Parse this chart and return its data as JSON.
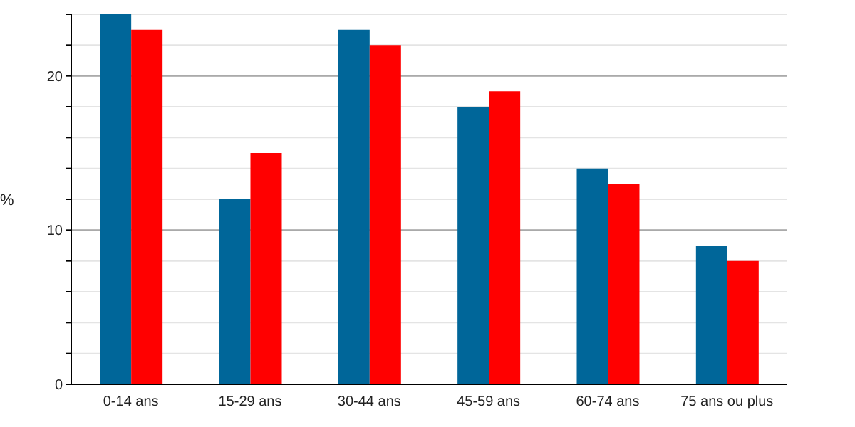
{
  "chart_data": {
    "type": "bar",
    "ylabel": "%",
    "categories": [
      "0-14 ans",
      "15-29 ans",
      "30-44 ans",
      "45-59 ans",
      "60-74 ans",
      "75 ans ou plus"
    ],
    "series": [
      {
        "color": "#006699",
        "values": [
          24,
          12,
          23,
          18,
          14,
          9
        ]
      },
      {
        "color": "#ff0000",
        "values": [
          23,
          15,
          22,
          19,
          13,
          8
        ]
      }
    ],
    "ylim": [
      0,
      24
    ],
    "yticks": [
      0,
      {
        "value": 2,
        "label": null
      },
      {
        "value": 4,
        "label": null
      },
      {
        "value": 6,
        "label": null
      },
      {
        "value": 8,
        "label": null
      },
      10,
      {
        "value": 12,
        "label": null
      },
      {
        "value": 14,
        "label": null
      },
      {
        "value": 16,
        "label": null
      },
      {
        "value": 18,
        "label": null
      },
      20,
      {
        "value": 22,
        "label": null
      },
      {
        "value": 24,
        "label": null
      }
    ],
    "grid": "y",
    "legend": false
  }
}
